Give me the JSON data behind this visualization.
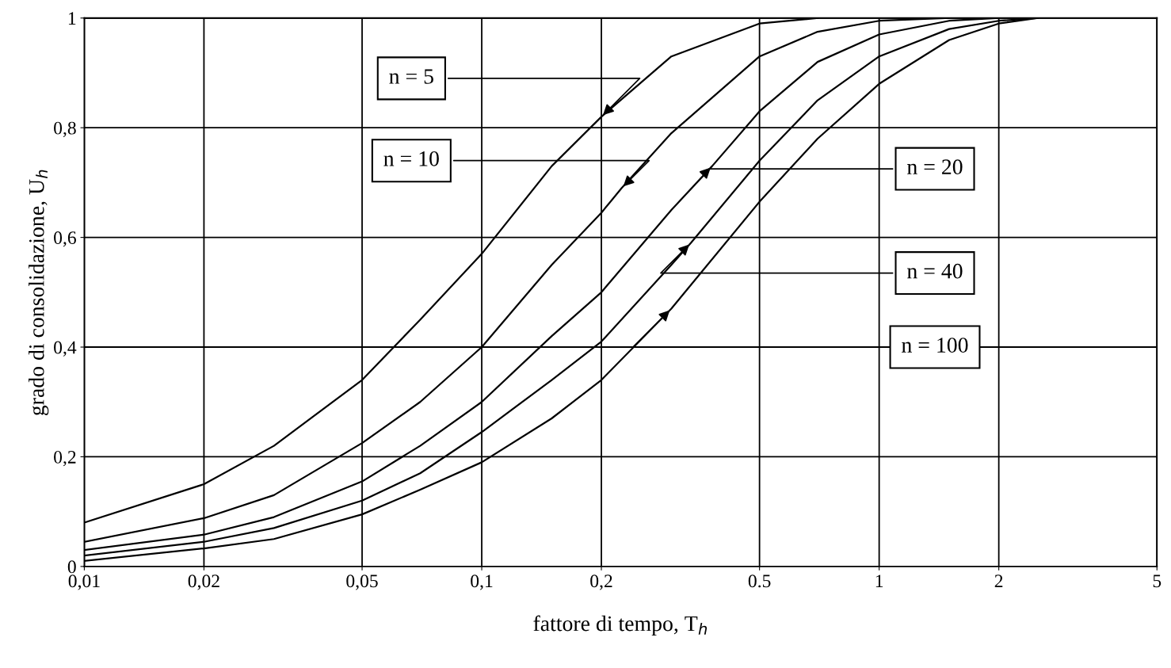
{
  "chart_data": {
    "type": "line",
    "xlabel": "fattore di tempo, T$_{h}$",
    "ylabel": "grado di consolidazione, U$_{h}$",
    "log": "x",
    "grid": true,
    "marker": "none",
    "line_style": "solid",
    "xlim": [
      0.01,
      5
    ],
    "ylim": [
      0,
      1
    ],
    "xticks": [
      {
        "value": 0.01,
        "label": "0,01"
      },
      {
        "value": 0.02,
        "label": "0,02"
      },
      {
        "value": 0.05,
        "label": "0,05"
      },
      {
        "value": 0.1,
        "label": "0,1"
      },
      {
        "value": 0.2,
        "label": "0,2"
      },
      0.5,
      1,
      2,
      5
    ],
    "yticks": [
      0,
      {
        "value": 0.2,
        "label": "0,2"
      },
      {
        "value": 0.4,
        "label": "0,4"
      },
      {
        "value": 0.6,
        "label": "0,6"
      },
      {
        "value": 0.8,
        "label": "0,8"
      },
      1
    ],
    "series": [
      {
        "color": "#000000",
        "x": [
          0.01,
          0.02,
          0.03,
          0.05,
          0.07,
          0.1,
          0.15,
          0.2,
          0.3,
          0.5,
          0.7
        ],
        "values": [
          0.08,
          0.15,
          0.22,
          0.34,
          0.45,
          0.57,
          0.73,
          0.82,
          0.93,
          0.99,
          1.0
        ]
      },
      {
        "color": "#000000",
        "x": [
          0.01,
          0.02,
          0.03,
          0.05,
          0.07,
          0.1,
          0.15,
          0.2,
          0.225,
          0.3,
          0.5,
          0.7,
          1,
          1.5
        ],
        "values": [
          0.045,
          0.088,
          0.13,
          0.225,
          0.3,
          0.4,
          0.55,
          0.645,
          0.69,
          0.79,
          0.93,
          0.975,
          0.995,
          1.0
        ]
      },
      {
        "color": "#000000",
        "x": [
          0.01,
          0.02,
          0.03,
          0.05,
          0.07,
          0.1,
          0.15,
          0.2,
          0.3,
          0.38,
          0.5,
          0.7,
          1,
          1.5,
          2
        ],
        "values": [
          0.03,
          0.058,
          0.09,
          0.155,
          0.22,
          0.3,
          0.42,
          0.5,
          0.65,
          0.73,
          0.83,
          0.92,
          0.97,
          0.995,
          1.0
        ]
      },
      {
        "color": "#000000",
        "x": [
          0.01,
          0.02,
          0.03,
          0.05,
          0.07,
          0.1,
          0.15,
          0.2,
          0.3,
          0.336,
          0.5,
          0.7,
          1,
          1.5,
          2,
          2.5
        ],
        "values": [
          0.02,
          0.045,
          0.07,
          0.12,
          0.17,
          0.245,
          0.34,
          0.41,
          0.55,
          0.59,
          0.74,
          0.85,
          0.93,
          0.98,
          0.995,
          1.0
        ]
      },
      {
        "color": "#000000",
        "x": [
          0.01,
          0.02,
          0.03,
          0.05,
          0.07,
          0.1,
          0.15,
          0.2,
          0.3,
          0.5,
          0.7,
          1,
          1.5,
          2,
          2.5
        ],
        "values": [
          0.01,
          0.033,
          0.05,
          0.095,
          0.14,
          0.19,
          0.27,
          0.34,
          0.47,
          0.665,
          0.78,
          0.88,
          0.96,
          0.99,
          1.0
        ]
      }
    ],
    "annotations": [
      {
        "text": "n = 5",
        "x": 0.2,
        "y": 0.82
      },
      {
        "text": "n = 10",
        "x": 0.225,
        "y": 0.69
      },
      {
        "text": "n = 20",
        "x": 0.38,
        "y": 0.73
      },
      {
        "text": "n = 40",
        "x": 0.336,
        "y": 0.59
      },
      {
        "text": "n = 100",
        "x": 0.3,
        "y": 0.47
      }
    ]
  }
}
